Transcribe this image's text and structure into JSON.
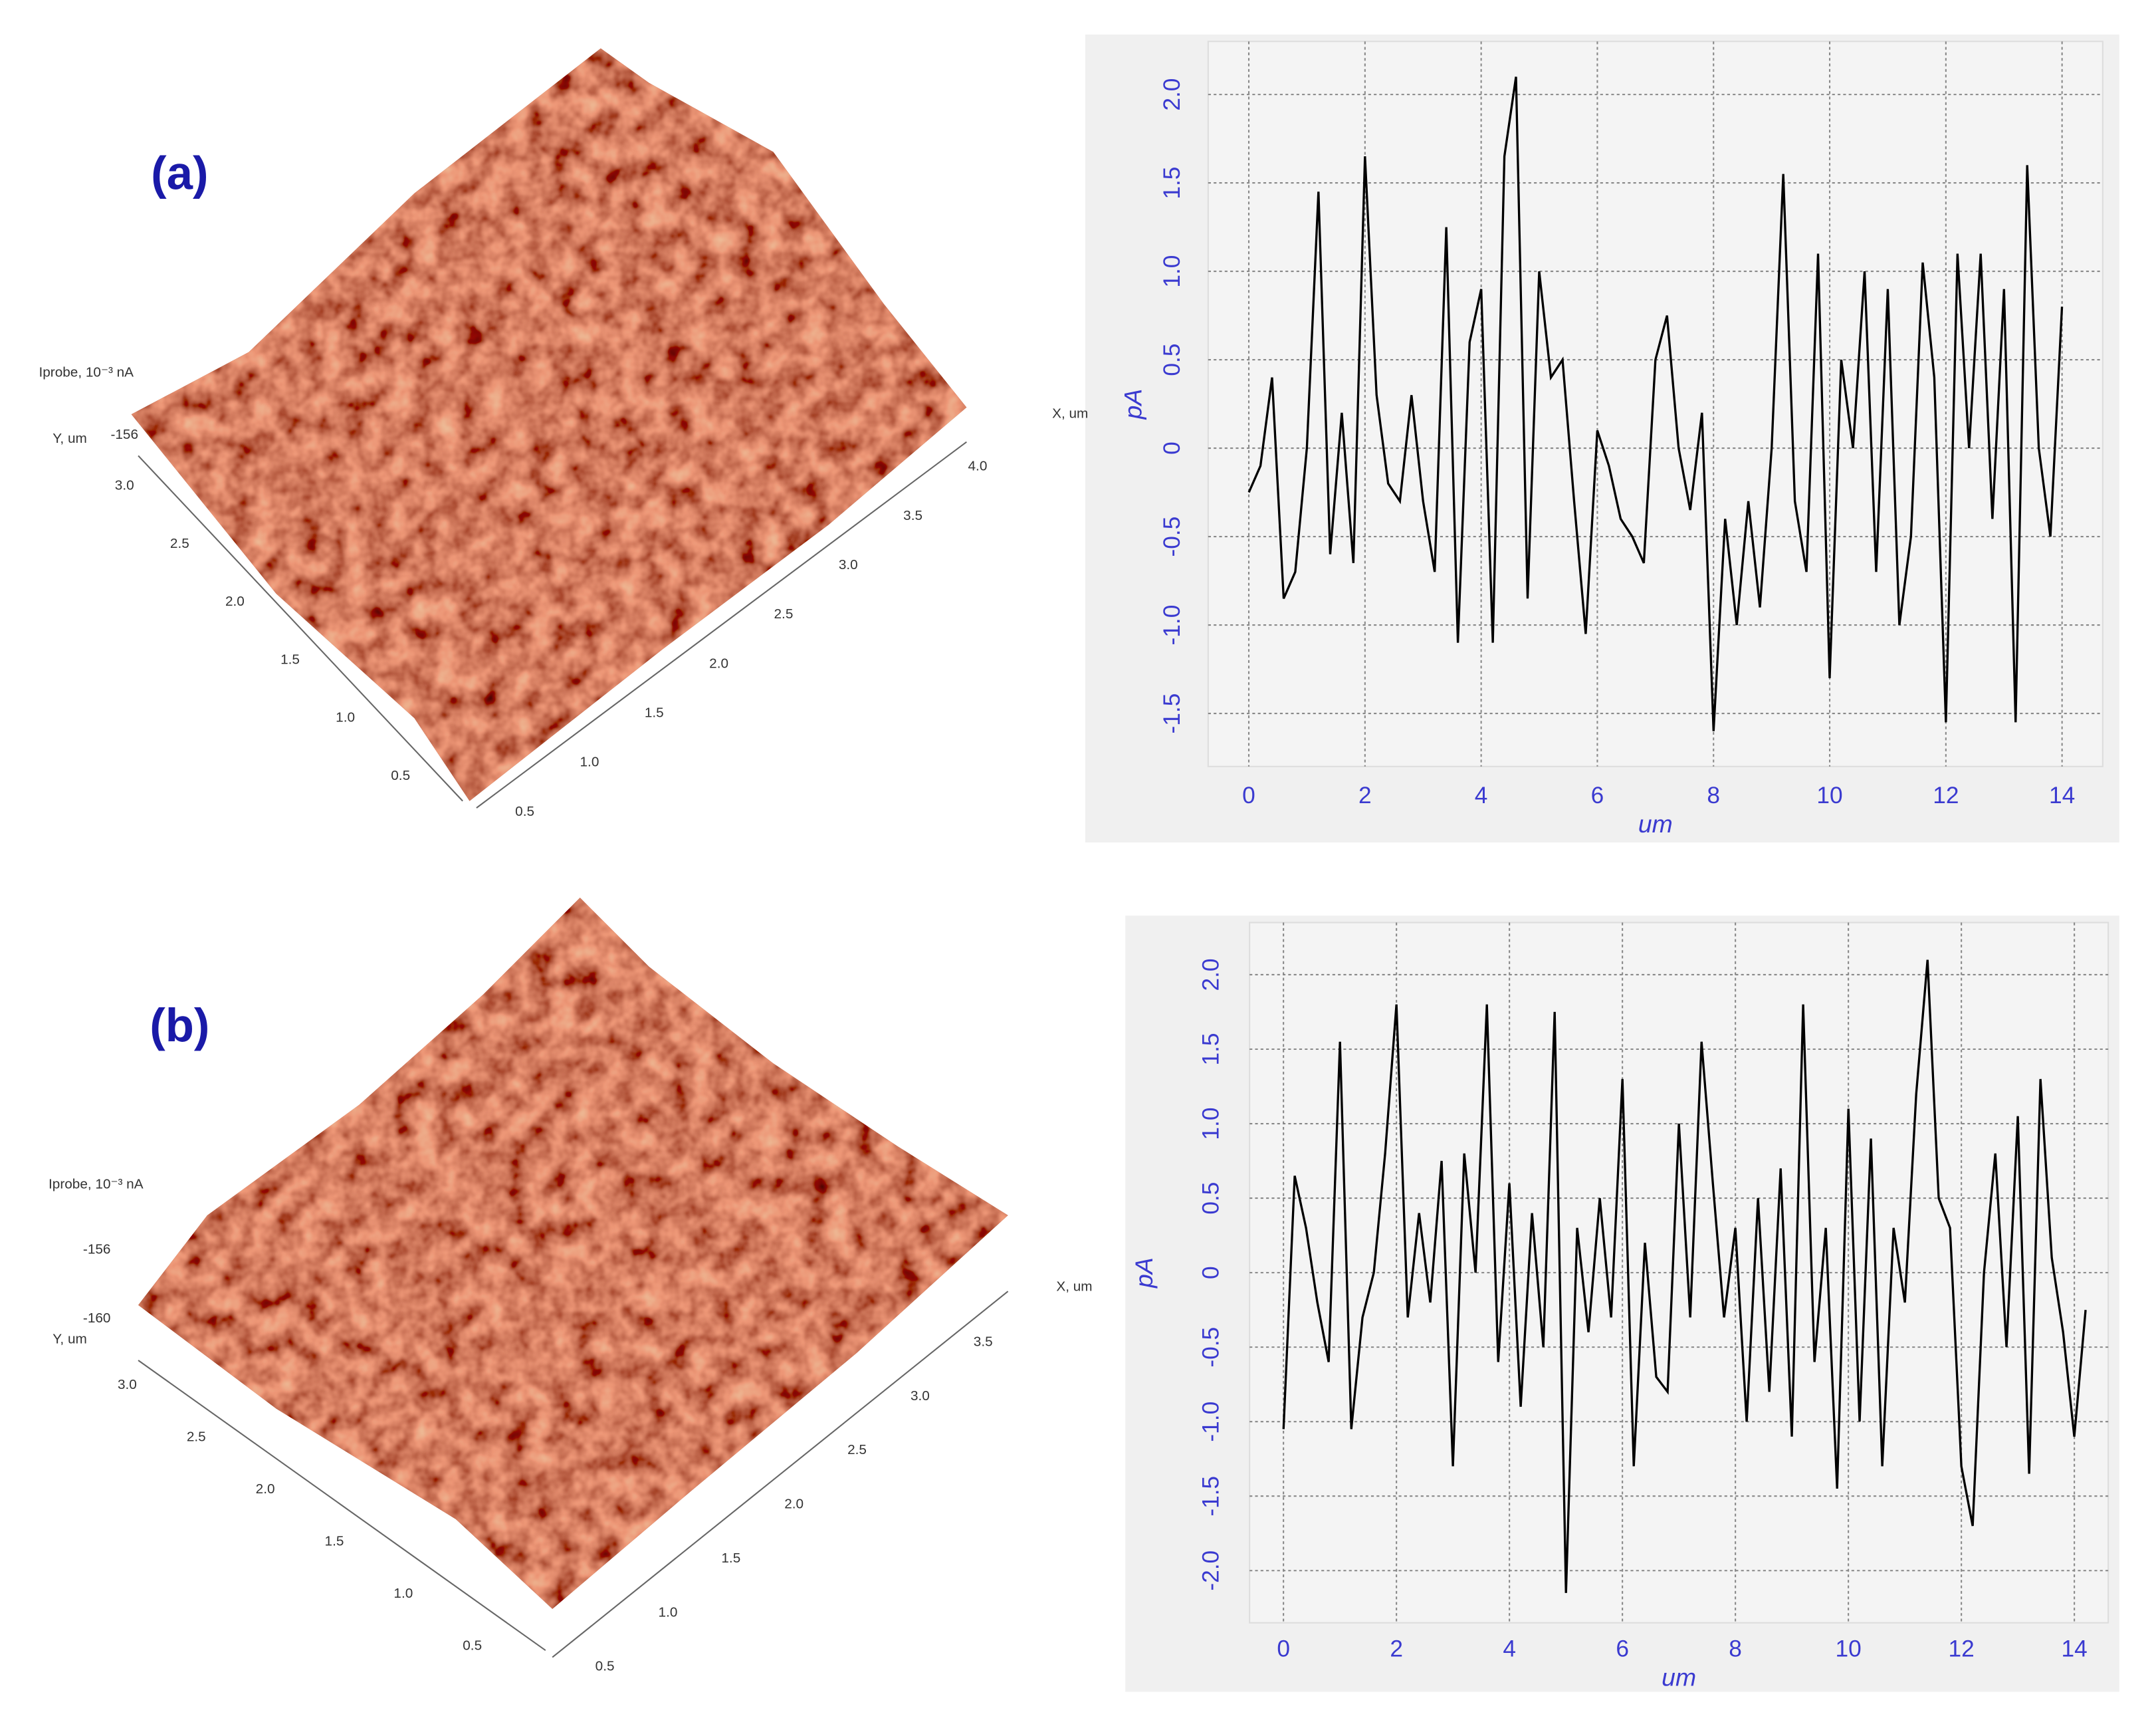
{
  "surfaces": [
    {
      "label": "(a)",
      "z_label": "Iprobe, 10⁻³ nA",
      "y_label": "Y, um",
      "x_label": "X, um",
      "z_ticks": [
        "-156"
      ],
      "y_ticks": [
        "3.0",
        "2.5",
        "2.0",
        "1.5",
        "1.0",
        "0.5"
      ],
      "x_ticks": [
        "0.5",
        "1.0",
        "1.5",
        "2.0",
        "2.5",
        "3.0",
        "3.5",
        "4.0"
      ]
    },
    {
      "label": "(b)",
      "z_label": "Iprobe, 10⁻³ nA",
      "y_label": "Y, um",
      "x_label": "X, um",
      "z_ticks": [
        "-156",
        "-160"
      ],
      "y_ticks": [
        "3.0",
        "2.5",
        "2.0",
        "1.5",
        "1.0",
        "0.5"
      ],
      "x_ticks": [
        "0.5",
        "1.0",
        "1.5",
        "2.0",
        "2.5",
        "3.0",
        "3.5"
      ]
    }
  ],
  "chart_data": [
    {
      "type": "line",
      "xlabel": "um",
      "ylabel": "pA",
      "color": "#000000",
      "grid": true,
      "xlim": [
        -0.7,
        14.7
      ],
      "ylim": [
        -1.8,
        2.3
      ],
      "xticks": [
        0,
        2,
        4,
        6,
        8,
        10,
        12,
        14
      ],
      "yticks": [
        -1.5,
        {
          "value": -1,
          "label": "-1.0"
        },
        -0.5,
        0,
        0.5,
        {
          "value": 1,
          "label": "1.0"
        },
        1.5,
        {
          "value": 2,
          "label": "2.0"
        }
      ],
      "x": [
        0,
        0.2,
        0.4,
        0.6,
        0.8,
        1.0,
        1.2,
        1.4,
        1.6,
        1.8,
        2.0,
        2.2,
        2.4,
        2.6,
        2.8,
        3.0,
        3.2,
        3.4,
        3.6,
        3.8,
        4.0,
        4.2,
        4.4,
        4.6,
        4.8,
        5.0,
        5.2,
        5.4,
        5.6,
        5.8,
        6.0,
        6.2,
        6.4,
        6.6,
        6.8,
        7.0,
        7.2,
        7.4,
        7.6,
        7.8,
        8.0,
        8.2,
        8.4,
        8.6,
        8.8,
        9.0,
        9.2,
        9.4,
        9.6,
        9.8,
        10.0,
        10.2,
        10.4,
        10.6,
        10.8,
        11.0,
        11.2,
        11.4,
        11.6,
        11.8,
        12.0,
        12.2,
        12.4,
        12.6,
        12.8,
        13.0,
        13.2,
        13.4,
        13.6,
        13.8,
        14.0
      ],
      "values": [
        -0.25,
        -0.1,
        0.4,
        -0.85,
        -0.7,
        0.0,
        1.45,
        -0.6,
        0.2,
        -0.65,
        1.65,
        0.3,
        -0.2,
        -0.3,
        0.3,
        -0.3,
        -0.7,
        1.25,
        -1.1,
        0.6,
        0.9,
        -1.1,
        1.65,
        2.1,
        -0.85,
        1.0,
        0.4,
        0.5,
        -0.3,
        -1.05,
        0.1,
        -0.1,
        -0.4,
        -0.5,
        -0.65,
        0.5,
        0.75,
        0.0,
        -0.35,
        0.2,
        -1.6,
        -0.4,
        -1.0,
        -0.3,
        -0.9,
        0.0,
        1.55,
        -0.3,
        -0.7,
        1.1,
        -1.3,
        0.5,
        0.0,
        1.0,
        -0.7,
        0.9,
        -1.0,
        -0.5,
        1.05,
        0.4,
        -1.55,
        1.1,
        0.0,
        1.1,
        -0.4,
        0.9,
        -1.55,
        1.6,
        0.0,
        -0.5,
        0.8
      ]
    },
    {
      "type": "line",
      "xlabel": "um",
      "ylabel": "pA",
      "color": "#000000",
      "grid": true,
      "xlim": [
        -0.6,
        14.6
      ],
      "ylim": [
        -2.35,
        2.35
      ],
      "xticks": [
        0,
        2,
        4,
        6,
        8,
        10,
        12,
        14
      ],
      "yticks": [
        {
          "value": -2,
          "label": "-2.0"
        },
        -1.5,
        {
          "value": -1,
          "label": "-1.0"
        },
        -0.5,
        0,
        0.5,
        {
          "value": 1,
          "label": "1.0"
        },
        1.5,
        {
          "value": 2,
          "label": "2.0"
        }
      ],
      "x": [
        0,
        0.2,
        0.4,
        0.6,
        0.8,
        1.0,
        1.2,
        1.4,
        1.6,
        1.8,
        2.0,
        2.2,
        2.4,
        2.6,
        2.8,
        3.0,
        3.2,
        3.4,
        3.6,
        3.8,
        4.0,
        4.2,
        4.4,
        4.6,
        4.8,
        5.0,
        5.2,
        5.4,
        5.6,
        5.8,
        6.0,
        6.2,
        6.4,
        6.6,
        6.8,
        7.0,
        7.2,
        7.4,
        7.6,
        7.8,
        8.0,
        8.2,
        8.4,
        8.6,
        8.8,
        9.0,
        9.2,
        9.4,
        9.6,
        9.8,
        10.0,
        10.2,
        10.4,
        10.6,
        10.8,
        11.0,
        11.2,
        11.4,
        11.6,
        11.8,
        12.0,
        12.2,
        12.4,
        12.6,
        12.8,
        13.0,
        13.2,
        13.4,
        13.6,
        13.8,
        14.0,
        14.2
      ],
      "values": [
        -1.05,
        0.65,
        0.3,
        -0.2,
        -0.6,
        1.55,
        -1.05,
        -0.3,
        0.0,
        0.8,
        1.8,
        -0.3,
        0.4,
        -0.2,
        0.75,
        -1.3,
        0.8,
        0.0,
        1.8,
        -0.6,
        0.6,
        -0.9,
        0.4,
        -0.5,
        1.75,
        -2.15,
        0.3,
        -0.4,
        0.5,
        -0.3,
        1.3,
        -1.3,
        0.2,
        -0.7,
        -0.8,
        1.0,
        -0.3,
        1.55,
        0.6,
        -0.3,
        0.3,
        -1.0,
        0.5,
        -0.8,
        0.7,
        -1.1,
        1.8,
        -0.6,
        0.3,
        -1.45,
        1.1,
        -1.0,
        0.9,
        -1.3,
        0.3,
        -0.2,
        1.2,
        2.1,
        0.5,
        0.3,
        -1.3,
        -1.7,
        0.0,
        0.8,
        -0.5,
        1.05,
        -1.35,
        1.3,
        0.1,
        -0.4,
        -1.1,
        -0.25
      ]
    }
  ]
}
